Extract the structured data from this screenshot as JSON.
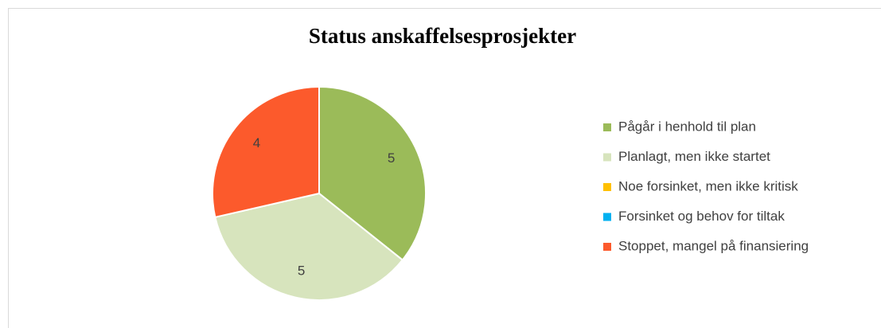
{
  "chart_data": {
    "type": "pie",
    "title": "Status anskaffelsesprosjekter",
    "categories": [
      "Pågår i henhold til plan",
      "Planlagt, men ikke startet",
      "Noe forsinket, men ikke kritisk",
      "Forsinket og behov for tiltak",
      "Stoppet, mangel på finansiering"
    ],
    "values": [
      5,
      5,
      0,
      0,
      4
    ],
    "colors": [
      "#9bbb59",
      "#d7e4bd",
      "#ffc000",
      "#00b0f0",
      "#fc5a2c"
    ],
    "legend": "right"
  }
}
